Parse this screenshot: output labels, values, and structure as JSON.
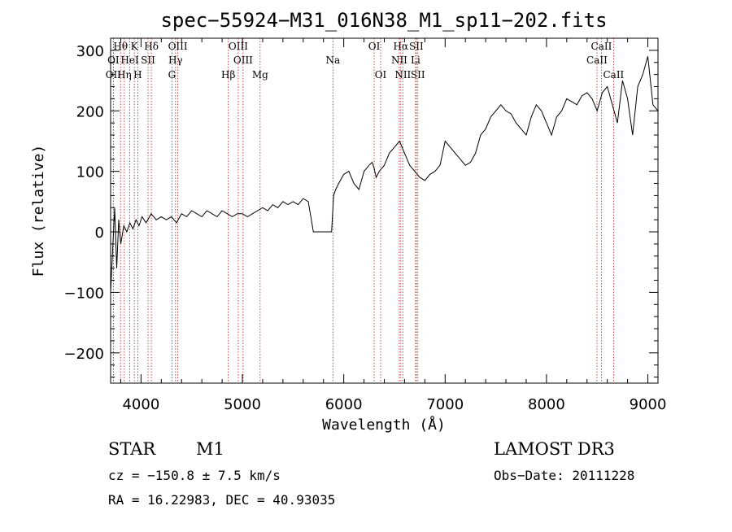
{
  "chart_data": {
    "type": "line",
    "title": "spec−55924−M31_016N38_M1_sp11−202.fits",
    "xlabel": "Wavelength (Å)",
    "ylabel": "Flux (relative)",
    "xlim": [
      3700,
      9100
    ],
    "ylim": [
      -250,
      320
    ],
    "xticks": [
      4000,
      5000,
      6000,
      7000,
      8000,
      9000
    ],
    "xtick_labels": [
      "4000",
      "5000",
      "6000",
      "7000",
      "8000",
      "9000"
    ],
    "yticks": [
      -200,
      -100,
      0,
      100,
      200,
      300
    ],
    "ytick_labels": [
      "−200",
      "−100",
      "0",
      "100",
      "200",
      "300"
    ],
    "grid": false,
    "series": [
      {
        "name": "flux",
        "x": [
          3700,
          3720,
          3740,
          3760,
          3780,
          3800,
          3830,
          3860,
          3890,
          3920,
          3950,
          3980,
          4010,
          4050,
          4100,
          4150,
          4200,
          4250,
          4300,
          4350,
          4400,
          4450,
          4500,
          4550,
          4600,
          4650,
          4700,
          4750,
          4800,
          4850,
          4900,
          4950,
          5000,
          5050,
          5100,
          5150,
          5200,
          5250,
          5300,
          5350,
          5400,
          5450,
          5500,
          5550,
          5600,
          5650,
          5700,
          5720,
          5800,
          5880,
          5900,
          5920,
          5950,
          6000,
          6050,
          6100,
          6150,
          6200,
          6250,
          6280,
          6300,
          6320,
          6350,
          6400,
          6450,
          6500,
          6550,
          6563,
          6600,
          6650,
          6700,
          6750,
          6800,
          6850,
          6900,
          6950,
          7000,
          7050,
          7100,
          7150,
          7200,
          7250,
          7300,
          7350,
          7400,
          7450,
          7500,
          7550,
          7600,
          7650,
          7700,
          7750,
          7800,
          7850,
          7900,
          7950,
          8000,
          8050,
          8100,
          8150,
          8200,
          8250,
          8300,
          8350,
          8400,
          8450,
          8500,
          8550,
          8600,
          8650,
          8700,
          8750,
          8800,
          8850,
          8900,
          8950,
          9000,
          9050,
          9100
        ],
        "y": [
          -100,
          -30,
          40,
          -60,
          20,
          -20,
          10,
          0,
          15,
          5,
          20,
          10,
          25,
          15,
          30,
          20,
          25,
          20,
          25,
          15,
          30,
          25,
          35,
          30,
          25,
          35,
          30,
          25,
          35,
          30,
          25,
          30,
          30,
          25,
          30,
          35,
          40,
          35,
          45,
          40,
          50,
          45,
          50,
          45,
          55,
          50,
          0,
          0,
          0,
          0,
          60,
          70,
          80,
          95,
          100,
          80,
          70,
          100,
          110,
          115,
          105,
          90,
          100,
          110,
          130,
          140,
          150,
          145,
          130,
          110,
          100,
          90,
          85,
          95,
          100,
          110,
          150,
          140,
          130,
          120,
          110,
          115,
          130,
          160,
          170,
          190,
          200,
          210,
          200,
          195,
          180,
          170,
          160,
          190,
          210,
          200,
          180,
          160,
          190,
          200,
          220,
          215,
          210,
          225,
          230,
          220,
          200,
          230,
          240,
          210,
          180,
          250,
          220,
          160,
          240,
          260,
          290,
          210,
          200
        ]
      }
    ],
    "emission_lines": [
      {
        "label": "Hθ",
        "wavelength": 3798
      },
      {
        "label": "K",
        "wavelength": 3934
      },
      {
        "label": "Hδ",
        "wavelength": 4102
      },
      {
        "label": "OIII",
        "wavelength": 4363
      },
      {
        "label": "OIII",
        "wavelength": 4959
      },
      {
        "label": "OI",
        "wavelength": 6300
      },
      {
        "label": "Hα",
        "wavelength": 6563
      },
      {
        "label": "SII",
        "wavelength": 6716
      },
      {
        "label": "CaII",
        "wavelength": 8542
      },
      {
        "label": "OI",
        "wavelength": 3727
      },
      {
        "label": "HeI",
        "wavelength": 3889
      },
      {
        "label": "SII",
        "wavelength": 4069
      },
      {
        "label": "Hγ",
        "wavelength": 4340
      },
      {
        "label": "OIII",
        "wavelength": 5007
      },
      {
        "label": "Na",
        "wavelength": 5893
      },
      {
        "label": "NII",
        "wavelength": 6548
      },
      {
        "label": "Li",
        "wavelength": 6708
      },
      {
        "label": "CaII",
        "wavelength": 8498
      },
      {
        "label": "OII",
        "wavelength": 3727
      },
      {
        "label": "Hη",
        "wavelength": 3835
      },
      {
        "label": "H",
        "wavelength": 3968
      },
      {
        "label": "G",
        "wavelength": 4305
      },
      {
        "label": "Hβ",
        "wavelength": 4861
      },
      {
        "label": "Mg",
        "wavelength": 5175
      },
      {
        "label": "OI",
        "wavelength": 6364
      },
      {
        "label": "NII",
        "wavelength": 6583
      },
      {
        "label": "SII",
        "wavelength": 6731
      },
      {
        "label": "CaII",
        "wavelength": 8662
      }
    ]
  },
  "info": {
    "object_class": "STAR",
    "subclass": "M1",
    "cz": "cz = −150.8 ± 7.5 km/s",
    "coords": "RA =  16.22983, DEC =  40.93035",
    "survey": "LAMOST DR3",
    "obs_date": "Obs−Date: 20111228"
  }
}
